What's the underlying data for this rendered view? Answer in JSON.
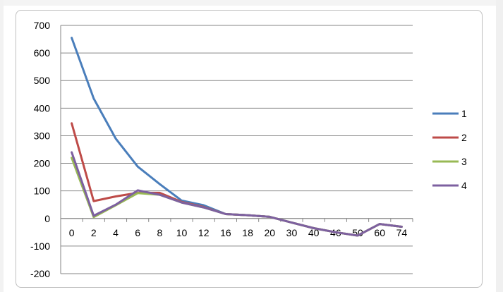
{
  "chart_data": {
    "type": "line",
    "categories": [
      "0",
      "2",
      "4",
      "6",
      "8",
      "10",
      "12",
      "16",
      "18",
      "20",
      "30",
      "40",
      "46",
      "50",
      "60",
      "74"
    ],
    "ylim": [
      -200,
      700
    ],
    "yticks": [
      700,
      600,
      500,
      400,
      300,
      200,
      100,
      0,
      -100,
      -200
    ],
    "grid": true,
    "legend_position": "right",
    "series": [
      {
        "name": "1",
        "color": "#4a7ebb",
        "values": [
          655,
          435,
          290,
          188,
          125,
          65,
          48,
          16,
          12,
          6,
          -15,
          -35,
          -50,
          -62,
          -20,
          -30
        ]
      },
      {
        "name": "2",
        "color": "#be4b48",
        "values": [
          345,
          63,
          80,
          93,
          93,
          60,
          42,
          16,
          12,
          6,
          -15,
          -35,
          -50,
          -62,
          -20,
          -30
        ]
      },
      {
        "name": "3",
        "color": "#98b954",
        "values": [
          220,
          5,
          48,
          92,
          86,
          58,
          40,
          16,
          12,
          6,
          -15,
          -35,
          -50,
          -62,
          -20,
          -30
        ]
      },
      {
        "name": "4",
        "color": "#7d60a0",
        "values": [
          240,
          10,
          50,
          102,
          86,
          58,
          40,
          16,
          12,
          6,
          -15,
          -35,
          -50,
          -62,
          -20,
          -30
        ]
      }
    ]
  }
}
